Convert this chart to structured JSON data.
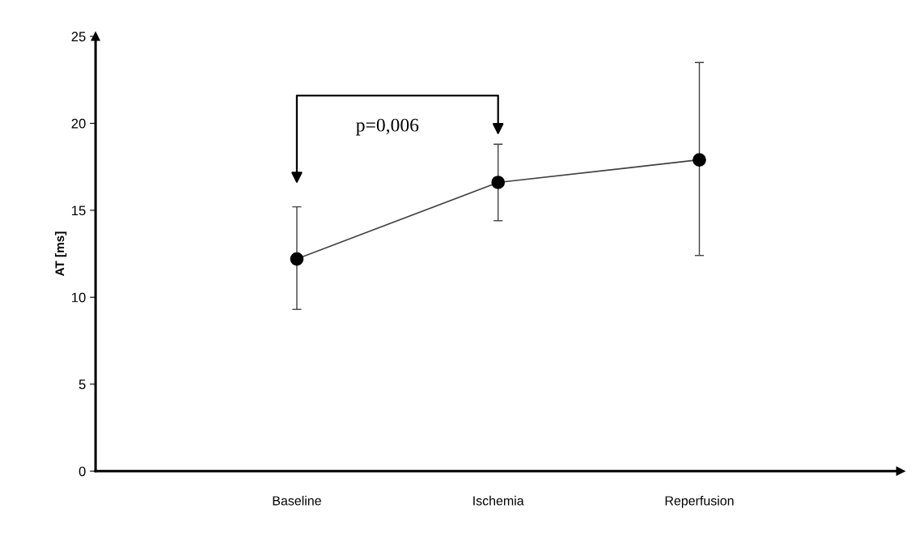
{
  "chart_data": {
    "type": "line",
    "ylabel": "AT [ms]",
    "categories": [
      "Baseline",
      "Ischemia",
      "Reperfusion"
    ],
    "series": [
      {
        "color": "#000000",
        "values": [
          12.2,
          16.6,
          17.9
        ],
        "errors": [
          [
            9.3,
            15.2
          ],
          [
            14.4,
            18.8
          ],
          [
            12.4,
            23.5
          ]
        ]
      }
    ],
    "ylim": [
      0,
      25
    ],
    "yticks": [
      0,
      5,
      10,
      15,
      20,
      25
    ],
    "marker": "circle",
    "line_style": "solid",
    "grid": false,
    "annotations": [
      "p=0,006"
    ]
  }
}
